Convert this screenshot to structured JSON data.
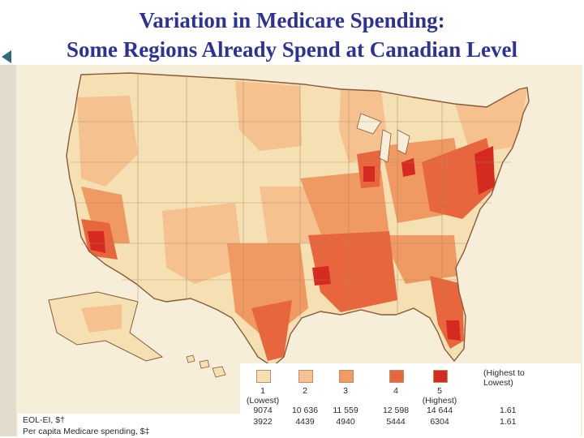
{
  "title": {
    "line1": "Variation in Medicare Spending:",
    "line2": "Some Regions Already Spend at Canadian Level"
  },
  "legend": {
    "scale_note": "(Highest to Lowest)",
    "categories": [
      {
        "number": "1",
        "note": "(Lowest)",
        "color": "#f5e0b4",
        "eol_ei": "9074",
        "medicare": "3922"
      },
      {
        "number": "2",
        "note": "",
        "color": "#f4c18f",
        "eol_ei": "10 636",
        "medicare": "4439"
      },
      {
        "number": "3",
        "note": "",
        "color": "#ef9a62",
        "eol_ei": "11 559",
        "medicare": "4940"
      },
      {
        "number": "4",
        "note": "",
        "color": "#e8663d",
        "eol_ei": "12 598",
        "medicare": "5444"
      },
      {
        "number": "5",
        "note": "(Highest)",
        "color": "#d42a1f",
        "eol_ei": "14 644",
        "medicare": "6304"
      }
    ],
    "ratios": {
      "eol_ei": "1.61",
      "medicare": "1.61"
    },
    "row_labels": {
      "eol_ei": "EOL-EI, $†",
      "medicare": "Per capita Medicare spending, $‡"
    }
  },
  "colors": {
    "title": "#2d3392",
    "background": "#f6eed9",
    "water": "#f6eed9",
    "border": "#8a5a3a"
  }
}
